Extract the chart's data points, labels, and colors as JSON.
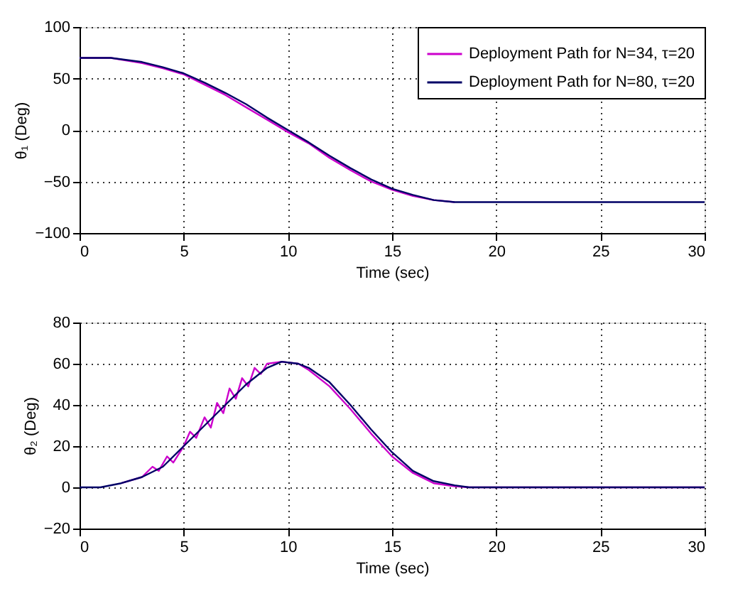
{
  "chart_data": [
    {
      "type": "line",
      "xlabel": "Time (sec)",
      "ylabel": "θ₁ (Deg)",
      "xlim": [
        0,
        30
      ],
      "xticks": [
        0,
        5,
        10,
        15,
        20,
        25,
        30
      ],
      "ylim": [
        -100,
        100
      ],
      "yticks": [
        -100,
        -50,
        0,
        50,
        100
      ],
      "grid": true,
      "legend": "top right",
      "series": [
        {
          "name": "Deployment Path for N=34, τ=20",
          "color": "#cc00cc",
          "x": [
            0,
            1.5,
            3,
            4,
            5,
            6,
            7,
            8,
            9,
            10,
            11,
            12,
            13,
            14,
            15,
            16,
            17,
            18
          ],
          "values": [
            70,
            70,
            65,
            60,
            54,
            44,
            34,
            22,
            10,
            -2,
            -13,
            -27,
            -39,
            -50,
            -58,
            -64,
            -68,
            -70
          ]
        },
        {
          "name": "Deployment Path for N=80, τ=20",
          "color": "#000066",
          "x": [
            0,
            1.5,
            3,
            4,
            5,
            6,
            7,
            8,
            9,
            10,
            11,
            12,
            13,
            14,
            15,
            16,
            17,
            18,
            18.5,
            30
          ],
          "values": [
            70,
            70,
            66,
            61,
            55,
            46,
            36,
            25,
            12,
            0,
            -12,
            -25,
            -37,
            -48,
            -57,
            -63,
            -68,
            -70,
            -70,
            -70
          ]
        }
      ]
    },
    {
      "type": "line",
      "xlabel": "Time (sec)",
      "ylabel": "θ₂ (Deg)",
      "xlim": [
        0,
        30
      ],
      "xticks": [
        0,
        5,
        10,
        15,
        20,
        25,
        30
      ],
      "ylim": [
        -20,
        80
      ],
      "yticks": [
        -20,
        0,
        20,
        40,
        60,
        80
      ],
      "grid": true,
      "series": [
        {
          "color": "#cc00cc",
          "x": [
            2,
            3,
            3.5,
            3.8,
            4.2,
            4.5,
            5,
            5.3,
            5.6,
            6,
            6.3,
            6.6,
            6.9,
            7.2,
            7.5,
            7.8,
            8.1,
            8.4,
            8.7,
            9,
            9.7,
            10.5,
            11,
            12,
            13,
            14,
            15,
            16,
            17,
            18,
            18.7,
            30
          ],
          "values": [
            2,
            5,
            10,
            8,
            15,
            12,
            20,
            27,
            24,
            34,
            29,
            41,
            36,
            48,
            43,
            53,
            49,
            58,
            55,
            60,
            61,
            60,
            57,
            49,
            38,
            26,
            15,
            7,
            2,
            0.5,
            0,
            0
          ]
        },
        {
          "color": "#000066",
          "x": [
            0,
            1,
            2,
            3,
            4,
            5,
            6,
            7,
            8,
            9,
            9.7,
            10.5,
            11,
            12,
            13,
            14,
            15,
            16,
            17,
            18,
            18.7,
            30
          ],
          "values": [
            0,
            0,
            2,
            5,
            10,
            20,
            30,
            40,
            50,
            58,
            61,
            60,
            58,
            51,
            40,
            28,
            17,
            8,
            3,
            1,
            0,
            0
          ]
        }
      ]
    }
  ]
}
